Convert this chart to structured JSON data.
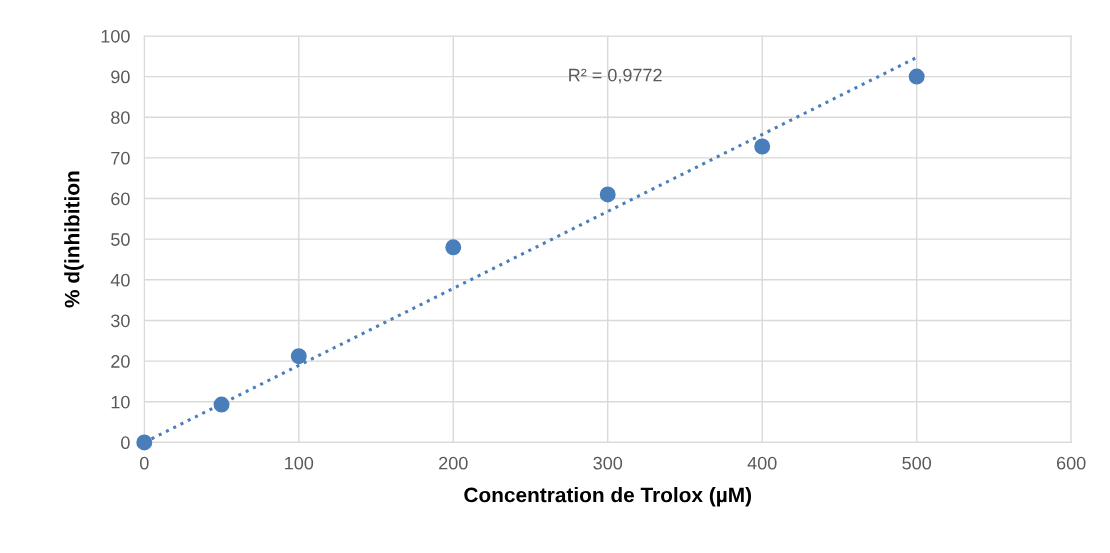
{
  "chart_data": {
    "type": "scatter",
    "xlabel": "Concentration de Trolox (µM)",
    "ylabel": "% d(inhibition",
    "series": [
      {
        "color": "#4a7ebb",
        "x": [
          0,
          50,
          100,
          200,
          300,
          400,
          500
        ],
        "values": [
          0,
          9.3,
          21.2,
          48,
          61,
          72.8,
          90
        ],
        "marker": "circle"
      },
      {
        "type": "line",
        "color": "#4a7ebb",
        "x": [
          0,
          500
        ],
        "values": [
          0,
          94.7
        ],
        "line_style": "dotted",
        "marker": "none"
      }
    ],
    "annotations": [
      "R² = 0,9772"
    ],
    "xlim": [
      0,
      600
    ],
    "xticks": [
      0,
      100,
      200,
      300,
      400,
      500,
      600
    ],
    "ylim": [
      0,
      100
    ],
    "yticks": [
      0,
      10,
      20,
      30,
      40,
      50,
      60,
      70,
      80,
      90,
      100
    ],
    "grid": true,
    "legend": false
  }
}
